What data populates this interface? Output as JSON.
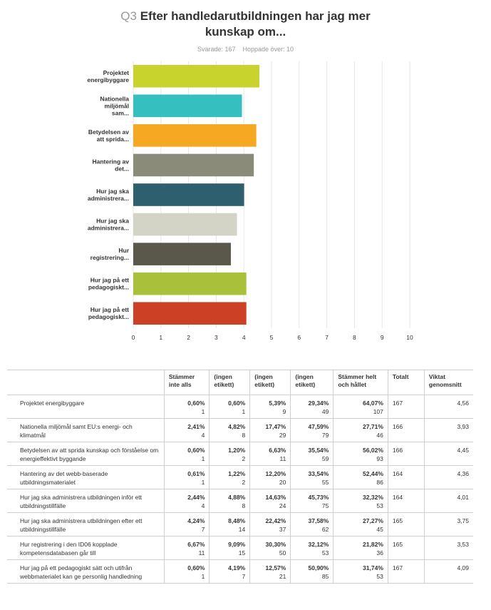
{
  "header": {
    "question_number": "Q3",
    "title_line1": "Efter handledarutbildningen har jag mer",
    "title_line2": "kunskap om...",
    "answered": "Svarade: 167",
    "skipped": "Hoppade över: 10"
  },
  "chart_data": {
    "type": "bar",
    "orientation": "horizontal",
    "categories": [
      "Projektet energibyggare",
      "Nationella miljömål sam...",
      "Betydelsen av att sprida...",
      "Hantering av det...",
      "Hur jag ska administrera...",
      "Hur jag ska administrera...",
      "Hur registrering...",
      "Hur jag på ett pedagogiskt...",
      "Hur jag på ett pedagogiskt..."
    ],
    "values": [
      4.56,
      3.93,
      4.45,
      4.36,
      4.01,
      3.75,
      3.53,
      4.09,
      4.09
    ],
    "colors": [
      "#c9d32d",
      "#35bfbf",
      "#f7a823",
      "#8b8b7a",
      "#2d5f6e",
      "#d3d3c6",
      "#5a584a",
      "#a9c13a",
      "#cc4125"
    ],
    "xlim": [
      0,
      10
    ],
    "xticks": [
      0,
      1,
      2,
      3,
      4,
      5,
      6,
      7,
      8,
      9,
      10
    ],
    "grid": true,
    "legend": "none"
  },
  "table": {
    "headers": [
      "",
      "Stämmer inte alls",
      "(ingen etikett)",
      "(ingen etikett)",
      "(ingen etikett)",
      "Stämmer helt och hållet",
      "Totalt",
      "Viktat genomsnitt"
    ],
    "rows": [
      {
        "label": "Projektet energibyggare",
        "cells": [
          [
            "0,60%",
            "1"
          ],
          [
            "0,60%",
            "1"
          ],
          [
            "5,39%",
            "9"
          ],
          [
            "29,34%",
            "49"
          ],
          [
            "64,07%",
            "107"
          ]
        ],
        "total": "167",
        "avg": "4,56"
      },
      {
        "label": "Nationella miljömål samt EU:s energi- och klimatmål",
        "cells": [
          [
            "2,41%",
            "4"
          ],
          [
            "4,82%",
            "8"
          ],
          [
            "17,47%",
            "29"
          ],
          [
            "47,59%",
            "79"
          ],
          [
            "27,71%",
            "46"
          ]
        ],
        "total": "166",
        "avg": "3,93"
      },
      {
        "label": "Betydelsen av att sprida kunskap och förståelse om energieffektivt byggande",
        "cells": [
          [
            "0,60%",
            "1"
          ],
          [
            "1,20%",
            "2"
          ],
          [
            "6,63%",
            "11"
          ],
          [
            "35,54%",
            "59"
          ],
          [
            "56,02%",
            "93"
          ]
        ],
        "total": "166",
        "avg": "4,45"
      },
      {
        "label": "Hantering av det webb-baserade utbildningsmaterialet",
        "cells": [
          [
            "0,61%",
            "1"
          ],
          [
            "1,22%",
            "2"
          ],
          [
            "12,20%",
            "20"
          ],
          [
            "33,54%",
            "55"
          ],
          [
            "52,44%",
            "86"
          ]
        ],
        "total": "164",
        "avg": "4,36"
      },
      {
        "label": "Hur jag ska administrera utbildningen inför ett utbildningstillfälle",
        "cells": [
          [
            "2,44%",
            "4"
          ],
          [
            "4,88%",
            "8"
          ],
          [
            "14,63%",
            "24"
          ],
          [
            "45,73%",
            "75"
          ],
          [
            "32,32%",
            "53"
          ]
        ],
        "total": "164",
        "avg": "4,01"
      },
      {
        "label": "Hur jag ska administrera utbildningen efter ett utbildningstillfälle",
        "cells": [
          [
            "4,24%",
            "7"
          ],
          [
            "8,48%",
            "14"
          ],
          [
            "22,42%",
            "37"
          ],
          [
            "37,58%",
            "62"
          ],
          [
            "27,27%",
            "45"
          ]
        ],
        "total": "165",
        "avg": "3,75"
      },
      {
        "label": "Hur registrering i den ID06 kopplade kompetensdatabasen går till",
        "cells": [
          [
            "6,67%",
            "11"
          ],
          [
            "9,09%",
            "15"
          ],
          [
            "30,30%",
            "50"
          ],
          [
            "32,12%",
            "53"
          ],
          [
            "21,82%",
            "36"
          ]
        ],
        "total": "165",
        "avg": "3,53"
      },
      {
        "label": "Hur jag på ett pedagogiskt sätt och utifrån webbmaterialet kan ge personlig handledning",
        "cells": [
          [
            "0,60%",
            "1"
          ],
          [
            "4,19%",
            "7"
          ],
          [
            "12,57%",
            "21"
          ],
          [
            "50,90%",
            "85"
          ],
          [
            "31,74%",
            "53"
          ]
        ],
        "total": "167",
        "avg": "4,09"
      }
    ]
  }
}
